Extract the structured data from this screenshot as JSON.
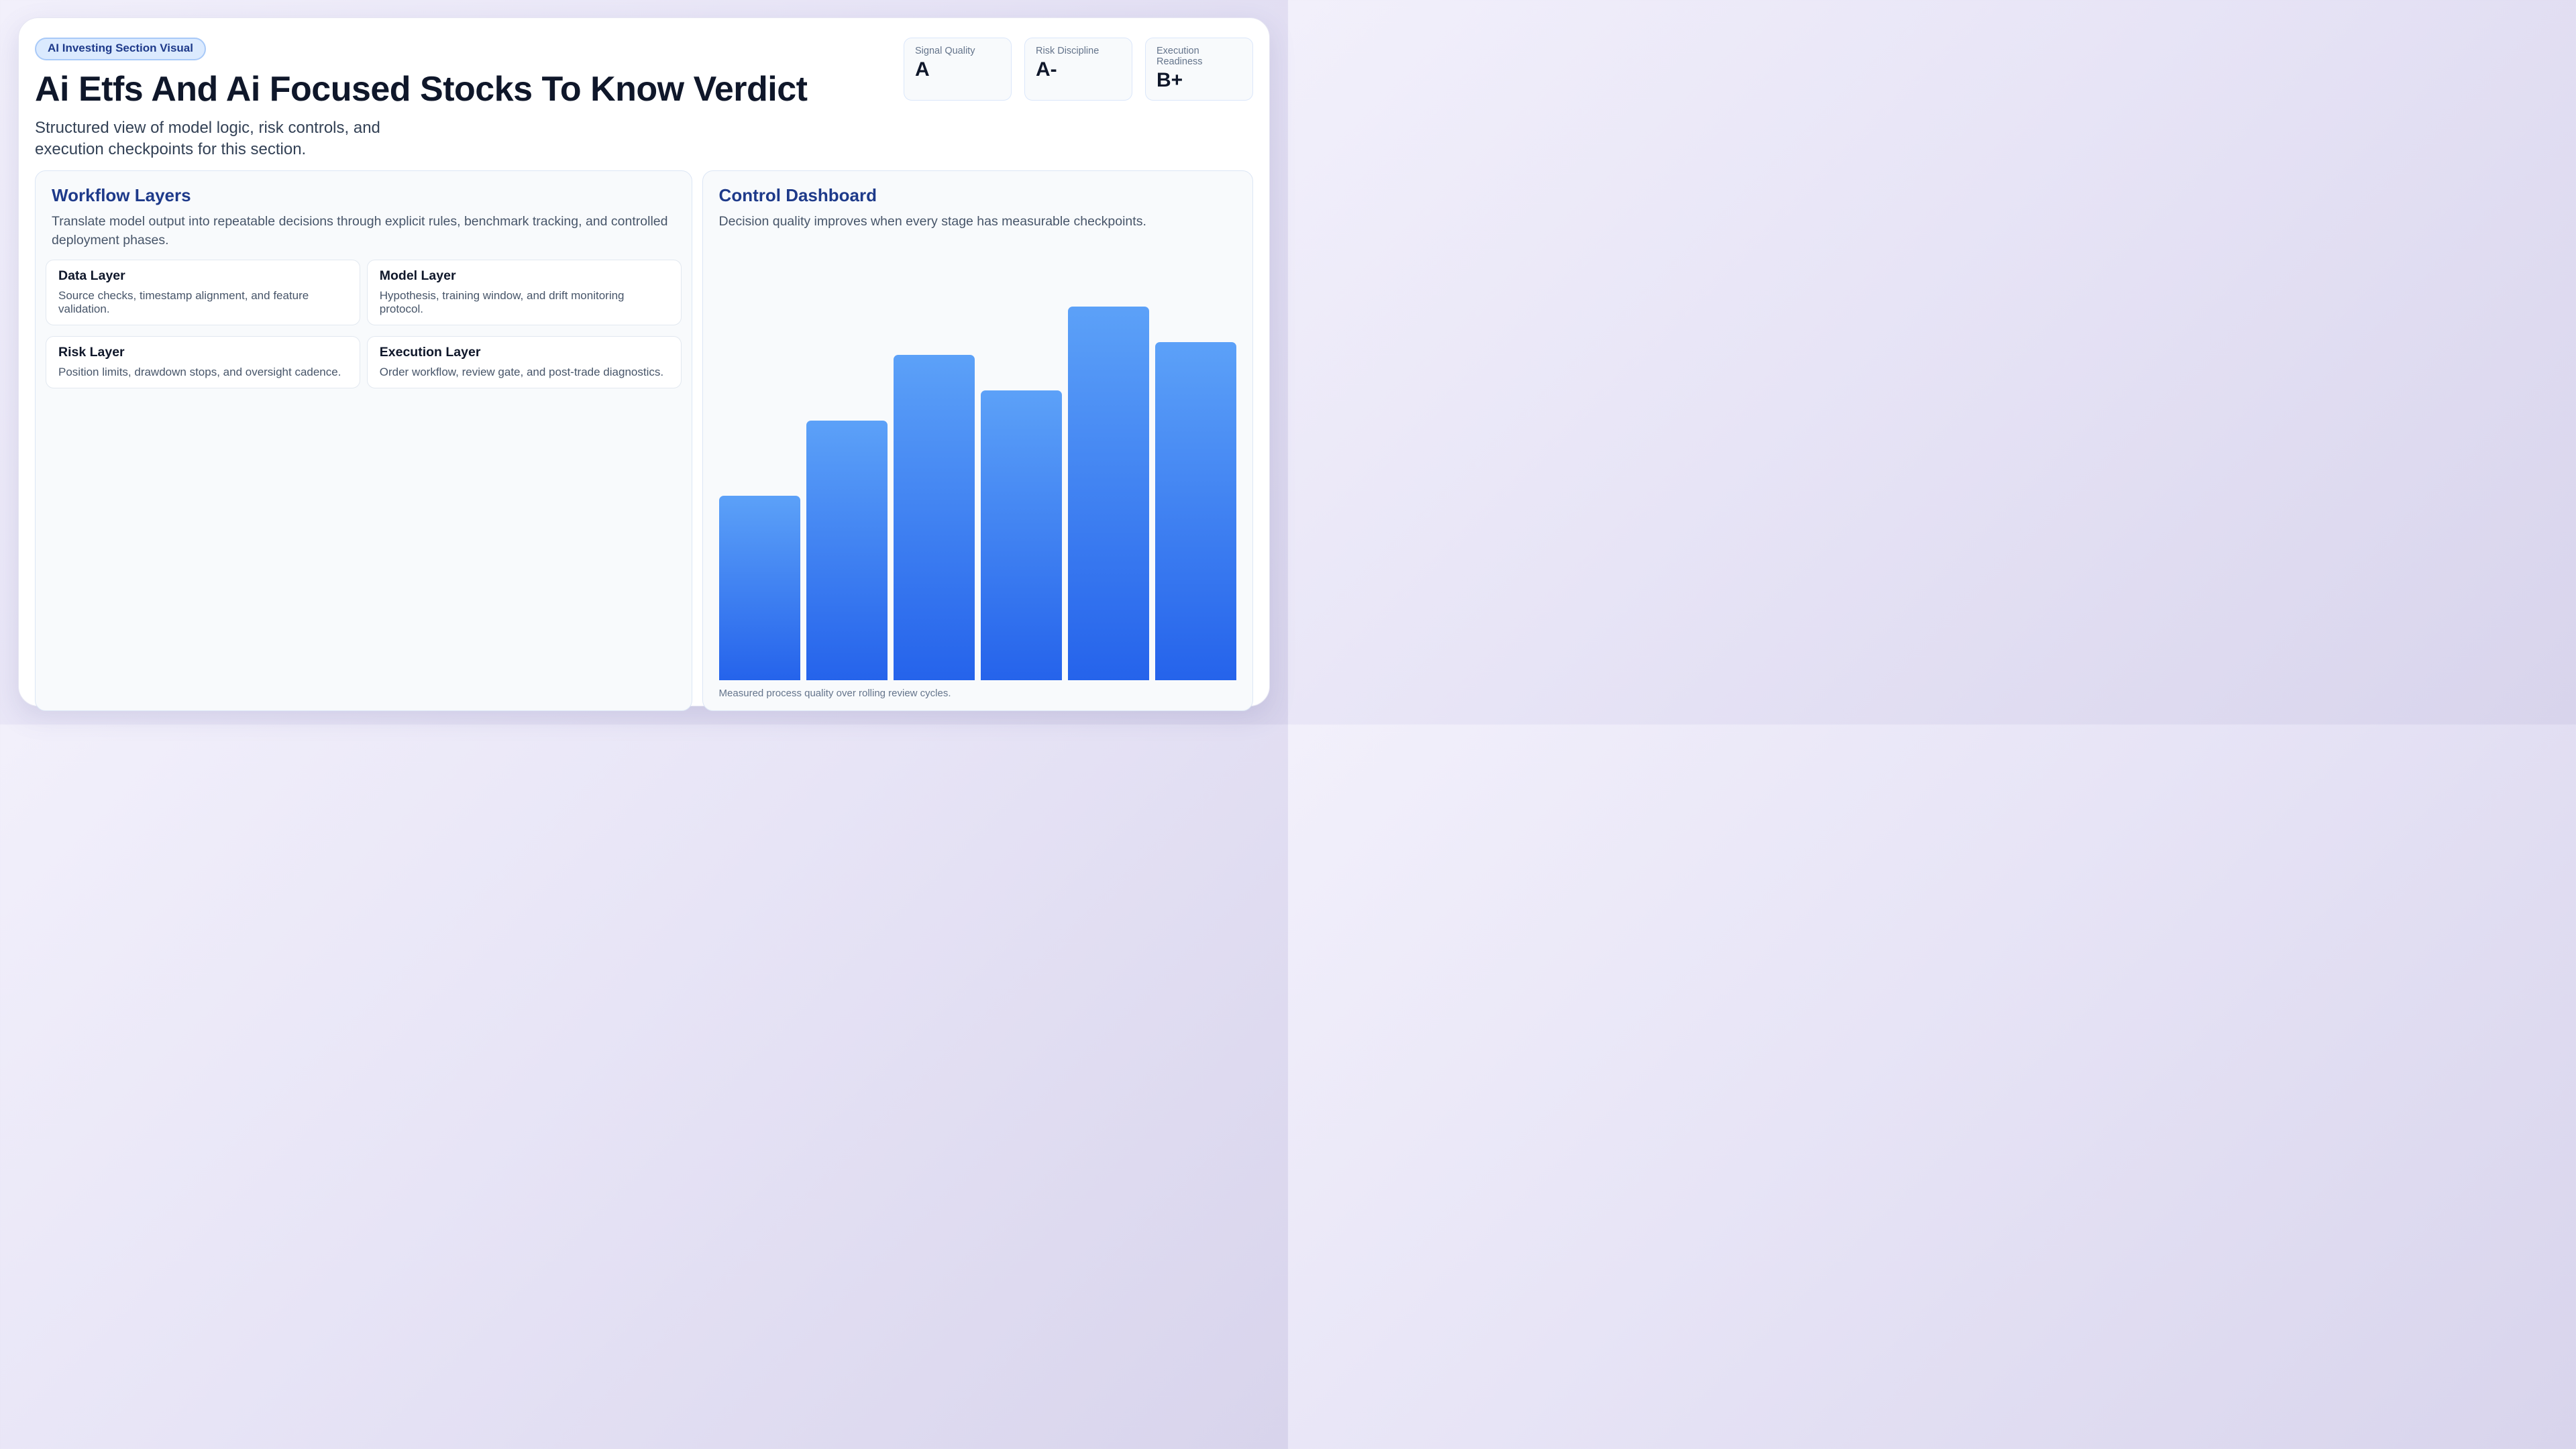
{
  "header": {
    "badge": "AI Investing Section Visual",
    "title": "Ai Etfs And Ai Focused Stocks To Know Verdict",
    "subtitle": "Structured view of model logic, risk controls, and execution checkpoints for this section.",
    "stats": [
      {
        "label": "Signal Quality",
        "value": "A"
      },
      {
        "label": "Risk Discipline",
        "value": "A-"
      },
      {
        "label": "Execution Readiness",
        "value": "B+"
      }
    ]
  },
  "workflow": {
    "heading": "Workflow Layers",
    "description": "Translate model output into repeatable decisions through explicit rules, benchmark tracking, and controlled deployment phases.",
    "layers": [
      {
        "title": "Data Layer",
        "description": "Source checks, timestamp alignment, and feature validation."
      },
      {
        "title": "Model Layer",
        "description": "Hypothesis, training window, and drift monitoring protocol."
      },
      {
        "title": "Risk Layer",
        "description": "Position limits, drawdown stops, and oversight cadence."
      },
      {
        "title": "Execution Layer",
        "description": "Order workflow, review gate, and post-trade diagnostics."
      }
    ]
  },
  "dashboard": {
    "heading": "Control Dashboard",
    "description": "Decision quality improves when every stage has measurable checkpoints.",
    "caption": "Measured process quality over rolling review cycles."
  },
  "chart_data": {
    "type": "bar",
    "categories": [
      "",
      "",
      "",
      "",
      "",
      ""
    ],
    "values": [
      42,
      59,
      74,
      66,
      85,
      77
    ],
    "value_unit": "percent_of_plot_height",
    "title": "",
    "xlabel": "",
    "ylabel": "",
    "axis_labels_visible": false,
    "grid": false,
    "legend": false,
    "bar_gradient_top": "#5ca1f8",
    "bar_gradient_bottom": "#2563eb"
  },
  "colors": {
    "page_bg_start": "#f2f0fb",
    "page_bg_end": "#d8d4ec",
    "card_bg": "#ffffff",
    "panel_bg": "#f8fafc",
    "panel_border": "#dce6f5",
    "badge_bg": "#dbeafe",
    "badge_border": "#a8c9f8",
    "heading_blue": "#1e3a8a",
    "title_navy": "#0f172a",
    "body_text": "#475569",
    "muted_text": "#64748b",
    "accent_blue": "#2563eb"
  }
}
